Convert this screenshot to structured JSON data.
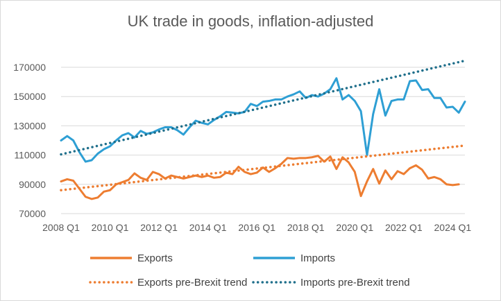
{
  "chart_data": {
    "type": "line",
    "title": "UK trade in goods, inflation-adjusted",
    "xlabel": "",
    "ylabel": "",
    "ylim": [
      70000,
      170000
    ],
    "yticks": [
      70000,
      90000,
      110000,
      130000,
      150000,
      170000
    ],
    "xticks": [
      "2008 Q1",
      "2010 Q1",
      "2012 Q1",
      "2014 Q1",
      "2016 Q1",
      "2018 Q1",
      "2020 Q1",
      "2022 Q1",
      "2024 Q1"
    ],
    "x_start": "2008 Q1",
    "num_quarters": 67,
    "series": [
      {
        "name": "Exports",
        "color": "#ED7D31",
        "style": "solid",
        "values": [
          92000,
          93500,
          92500,
          87000,
          81500,
          80000,
          81000,
          85000,
          86000,
          90000,
          91500,
          93000,
          97500,
          94500,
          93000,
          98500,
          97000,
          94000,
          96000,
          95000,
          94000,
          95000,
          96000,
          95000,
          96000,
          94500,
          95000,
          98000,
          97000,
          102000,
          98500,
          97000,
          98000,
          101500,
          98500,
          101000,
          104000,
          108000,
          107500,
          108000,
          108000,
          108500,
          109500,
          105500,
          109000,
          100500,
          108500,
          105000,
          98500,
          82000,
          92000,
          100500,
          90500,
          99500,
          93500,
          99000,
          97000,
          101000,
          103000,
          100000,
          94000,
          95000,
          93500,
          90000,
          89500,
          90000,
          null
        ]
      },
      {
        "name": "Imports",
        "color": "#2E9FD4",
        "style": "solid",
        "values": [
          120000,
          123000,
          120000,
          112000,
          105500,
          106500,
          111000,
          114000,
          116000,
          120000,
          123500,
          125000,
          122000,
          126500,
          124500,
          125500,
          127500,
          129000,
          129000,
          127000,
          124000,
          129000,
          133500,
          132000,
          131000,
          134000,
          136500,
          139500,
          139000,
          138500,
          139500,
          145000,
          143500,
          146500,
          147000,
          148000,
          148000,
          150000,
          151500,
          153500,
          149000,
          151000,
          150000,
          152000,
          155000,
          162500,
          148000,
          151000,
          147000,
          140000,
          110000,
          138000,
          155000,
          137000,
          147000,
          148000,
          148000,
          160500,
          161000,
          154500,
          155000,
          149000,
          149000,
          142500,
          143000,
          139000,
          146500
        ]
      },
      {
        "name": "Exports pre-Brexit trend",
        "color": "#ED7D31",
        "style": "dotted",
        "trend": [
          86000,
          116500
        ]
      },
      {
        "name": "Imports pre-Brexit trend",
        "color": "#1F6F8B",
        "style": "dotted",
        "trend": [
          110500,
          174500
        ]
      }
    ],
    "legend_position": "bottom"
  }
}
